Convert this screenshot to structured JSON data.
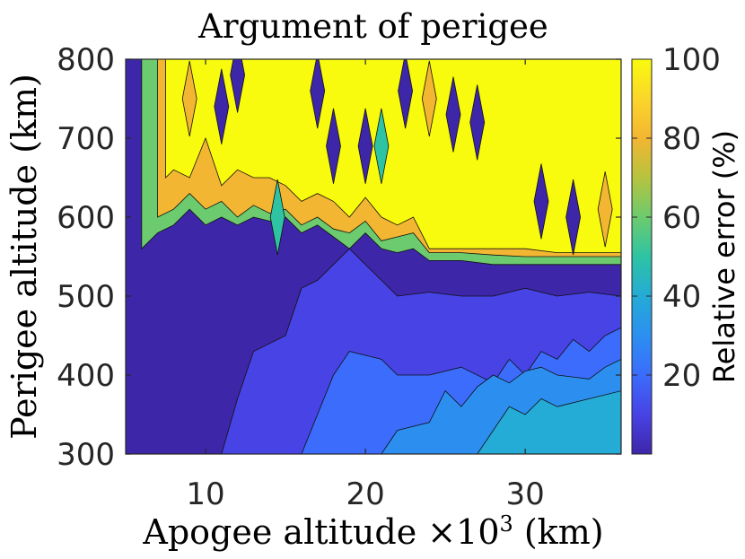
{
  "chart_data": {
    "type": "contour",
    "title": "Argument of perigee",
    "xlabel_main": "Apogee altitude ×10",
    "xlabel_exp": "3",
    "xlabel_unit": " (km)",
    "ylabel": "Perigee altitude (km)",
    "colorbar_label": "Relative error (%)",
    "xlim": [
      5,
      36
    ],
    "ylim": [
      300,
      800
    ],
    "clim": [
      0,
      100
    ],
    "x_ticks": [
      10,
      20,
      30
    ],
    "x_tick_labels": [
      "10",
      "20",
      "30"
    ],
    "y_ticks": [
      300,
      400,
      500,
      600,
      700,
      800
    ],
    "y_tick_labels": [
      "300",
      "400",
      "500",
      "600",
      "700",
      "800"
    ],
    "colorbar_ticks": [
      20,
      40,
      60,
      80,
      100
    ],
    "colorbar_tick_labels": [
      "20",
      "40",
      "60",
      "80",
      "100"
    ],
    "colormap": [
      "#3e26a8",
      "#4743e5",
      "#3b6cfc",
      "#2c8ff0",
      "#24abd6",
      "#2ec3a3",
      "#6ccb6e",
      "#b6c33f",
      "#f3b632",
      "#fbd62a",
      "#f9fb0e"
    ],
    "bands": [
      {
        "level": 5,
        "color": "#3e26a8",
        "boundary": [
          [
            5,
            300
          ],
          [
            36,
            300
          ],
          [
            36,
            800
          ],
          [
            5,
            800
          ]
        ]
      },
      {
        "level": 10,
        "color": "#4743e5",
        "boundary": [
          [
            11,
            300
          ],
          [
            12,
            370
          ],
          [
            13,
            430
          ],
          [
            14,
            440
          ],
          [
            15,
            450
          ],
          [
            16,
            510
          ],
          [
            17,
            520
          ],
          [
            18,
            540
          ],
          [
            19,
            560
          ],
          [
            21,
            520
          ],
          [
            22,
            500
          ],
          [
            24,
            505
          ],
          [
            26,
            500
          ],
          [
            28,
            500
          ],
          [
            30,
            510
          ],
          [
            32,
            500
          ],
          [
            34,
            505
          ],
          [
            36,
            500
          ],
          [
            36,
            300
          ]
        ]
      },
      {
        "level": 20,
        "color": "#3b6cfc",
        "boundary": [
          [
            16,
            300
          ],
          [
            17,
            350
          ],
          [
            18,
            400
          ],
          [
            19,
            430
          ],
          [
            21,
            420
          ],
          [
            22,
            400
          ],
          [
            24,
            400
          ],
          [
            26,
            410
          ],
          [
            28,
            390
          ],
          [
            29,
            420
          ],
          [
            30,
            400
          ],
          [
            31,
            430
          ],
          [
            32,
            420
          ],
          [
            33,
            445
          ],
          [
            34,
            430
          ],
          [
            35,
            450
          ],
          [
            36,
            460
          ],
          [
            36,
            300
          ]
        ]
      },
      {
        "level": 30,
        "color": "#2c8ff0",
        "boundary": [
          [
            21,
            300
          ],
          [
            22,
            330
          ],
          [
            24,
            340
          ],
          [
            25,
            380
          ],
          [
            26,
            360
          ],
          [
            27,
            385
          ],
          [
            28,
            400
          ],
          [
            29,
            390
          ],
          [
            30,
            405
          ],
          [
            31,
            410
          ],
          [
            32,
            400
          ],
          [
            34,
            395
          ],
          [
            35,
            410
          ],
          [
            36,
            420
          ],
          [
            36,
            300
          ]
        ]
      },
      {
        "level": 40,
        "color": "#24abd6",
        "boundary": [
          [
            27,
            300
          ],
          [
            28,
            330
          ],
          [
            29,
            360
          ],
          [
            30,
            350
          ],
          [
            31,
            370
          ],
          [
            32,
            360
          ],
          [
            34,
            370
          ],
          [
            36,
            380
          ],
          [
            36,
            300
          ]
        ]
      },
      {
        "level": 60,
        "color": "#6ccb6e",
        "boundary": [
          [
            6,
            560
          ],
          [
            7,
            580
          ],
          [
            8,
            590
          ],
          [
            9,
            610
          ],
          [
            10,
            590
          ],
          [
            11,
            600
          ],
          [
            12,
            590
          ],
          [
            13,
            600
          ],
          [
            14,
            595
          ],
          [
            15,
            600
          ],
          [
            16,
            580
          ],
          [
            17,
            590
          ],
          [
            18,
            575
          ],
          [
            19,
            560
          ],
          [
            20,
            580
          ],
          [
            21,
            560
          ],
          [
            22,
            555
          ],
          [
            23,
            560
          ],
          [
            24,
            545
          ],
          [
            26,
            545
          ],
          [
            28,
            540
          ],
          [
            30,
            540
          ],
          [
            32,
            540
          ],
          [
            34,
            540
          ],
          [
            36,
            540
          ],
          [
            36,
            800
          ],
          [
            6,
            800
          ]
        ]
      },
      {
        "level": 80,
        "color": "#f3b632",
        "boundary": [
          [
            7,
            600
          ],
          [
            8,
            610
          ],
          [
            9,
            630
          ],
          [
            10,
            610
          ],
          [
            11,
            620
          ],
          [
            12,
            600
          ],
          [
            13,
            615
          ],
          [
            14,
            605
          ],
          [
            15,
            610
          ],
          [
            16,
            590
          ],
          [
            17,
            600
          ],
          [
            18,
            585
          ],
          [
            19,
            580
          ],
          [
            20,
            595
          ],
          [
            21,
            570
          ],
          [
            22,
            575
          ],
          [
            23,
            580
          ],
          [
            24,
            555
          ],
          [
            26,
            555
          ],
          [
            28,
            552
          ],
          [
            30,
            550
          ],
          [
            32,
            550
          ],
          [
            34,
            550
          ],
          [
            36,
            550
          ],
          [
            36,
            800
          ],
          [
            7,
            800
          ]
        ]
      },
      {
        "level": 100,
        "color": "#f9fb0e",
        "boundary": [
          [
            7.5,
            650
          ],
          [
            8,
            660
          ],
          [
            9,
            650
          ],
          [
            10,
            700
          ],
          [
            11,
            640
          ],
          [
            12,
            660
          ],
          [
            13,
            650
          ],
          [
            14,
            650
          ],
          [
            15,
            640
          ],
          [
            16,
            620
          ],
          [
            17,
            630
          ],
          [
            18,
            620
          ],
          [
            19,
            600
          ],
          [
            20,
            625
          ],
          [
            21,
            600
          ],
          [
            22,
            590
          ],
          [
            23,
            600
          ],
          [
            24,
            560
          ],
          [
            26,
            560
          ],
          [
            28,
            560
          ],
          [
            30,
            560
          ],
          [
            32,
            555
          ],
          [
            34,
            555
          ],
          [
            36,
            555
          ],
          [
            36,
            800
          ],
          [
            7.5,
            800
          ]
        ]
      }
    ],
    "spikes": [
      {
        "x": 11,
        "y": 740,
        "color": "#3e26a8"
      },
      {
        "x": 12,
        "y": 780,
        "color": "#3e26a8"
      },
      {
        "x": 17,
        "y": 760,
        "color": "#3e26a8"
      },
      {
        "x": 18,
        "y": 690,
        "color": "#3e26a8"
      },
      {
        "x": 20,
        "y": 690,
        "color": "#3e26a8"
      },
      {
        "x": 22.5,
        "y": 760,
        "color": "#3e26a8"
      },
      {
        "x": 25.5,
        "y": 730,
        "color": "#3e26a8"
      },
      {
        "x": 27,
        "y": 720,
        "color": "#3e26a8"
      },
      {
        "x": 31,
        "y": 620,
        "color": "#3e26a8"
      },
      {
        "x": 33,
        "y": 600,
        "color": "#3e26a8"
      },
      {
        "x": 9,
        "y": 750,
        "color": "#f3b632"
      },
      {
        "x": 24,
        "y": 750,
        "color": "#f3b632"
      },
      {
        "x": 35,
        "y": 610,
        "color": "#f3b632"
      },
      {
        "x": 14.5,
        "y": 600,
        "color": "#2ec3a3"
      },
      {
        "x": 21,
        "y": 690,
        "color": "#2ec3a3"
      }
    ]
  }
}
